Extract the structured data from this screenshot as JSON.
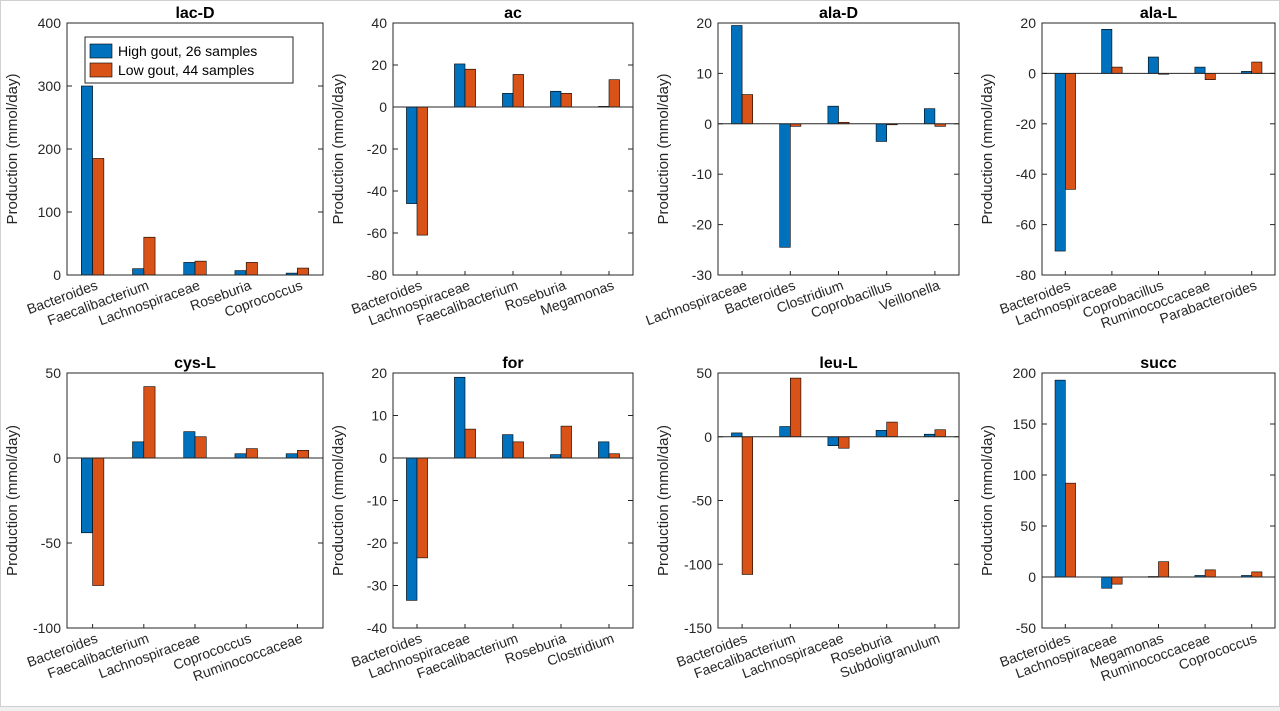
{
  "figure": {
    "legend": {
      "entries": [
        "High gout, 26 samples",
        "Low gout, 44 samples"
      ],
      "placement": "top-right"
    },
    "colors": {
      "high": "#0072BD",
      "low": "#D95319"
    }
  },
  "chart_data": [
    {
      "type": "bar",
      "title": "lac-D",
      "ylabel": "Production (mmol/day)",
      "ylim": [
        0,
        400
      ],
      "yticks": [
        0,
        100,
        200,
        300,
        400
      ],
      "categories": [
        "Bacteroides",
        "Faecalibacterium",
        "Lachnospiraceae",
        "Roseburia",
        "Coprococcus"
      ],
      "series": [
        {
          "name": "High gout, 26 samples",
          "values": [
            300,
            10,
            20,
            7,
            3
          ]
        },
        {
          "name": "Low gout, 44 samples",
          "values": [
            185,
            60,
            22,
            20,
            11
          ]
        }
      ]
    },
    {
      "type": "bar",
      "title": "ac",
      "ylabel": "Production (mmol/day)",
      "ylim": [
        -80,
        40
      ],
      "yticks": [
        -80,
        -60,
        -40,
        -20,
        0,
        20,
        40
      ],
      "categories": [
        "Bacteroides",
        "Lachnospiraceae",
        "Faecalibacterium",
        "Roseburia",
        "Megamonas"
      ],
      "series": [
        {
          "name": "High gout, 26 samples",
          "values": [
            -46,
            20.5,
            6.5,
            7.5,
            0.3
          ]
        },
        {
          "name": "Low gout, 44 samples",
          "values": [
            -61,
            18,
            15.5,
            6.5,
            13
          ]
        }
      ]
    },
    {
      "type": "bar",
      "title": "ala-D",
      "ylabel": "Production (mmol/day)",
      "ylim": [
        -30,
        20
      ],
      "yticks": [
        -30,
        -20,
        -10,
        0,
        10,
        20
      ],
      "categories": [
        "Lachnospiraceae",
        "Bacteroides",
        "Clostridium",
        "Coprobacillus",
        "Veillonella"
      ],
      "series": [
        {
          "name": "High gout, 26 samples",
          "values": [
            19.5,
            -24.5,
            3.5,
            -3.5,
            3
          ]
        },
        {
          "name": "Low gout, 44 samples",
          "values": [
            5.8,
            -0.5,
            0.3,
            -0.2,
            -0.5
          ]
        }
      ]
    },
    {
      "type": "bar",
      "title": "ala-L",
      "ylabel": "Production (mmol/day)",
      "ylim": [
        -80,
        20
      ],
      "yticks": [
        -80,
        -60,
        -40,
        -20,
        0,
        20
      ],
      "categories": [
        "Bacteroides",
        "Lachnospiraceae",
        "Coprobacillus",
        "Ruminococcaceae",
        "Parabacteroides"
      ],
      "series": [
        {
          "name": "High gout, 26 samples",
          "values": [
            -70.5,
            17.5,
            6.5,
            2.5,
            0.8
          ]
        },
        {
          "name": "Low gout, 44 samples",
          "values": [
            -46,
            2.5,
            -0.3,
            -2.5,
            4.5
          ]
        }
      ]
    },
    {
      "type": "bar",
      "title": "cys-L",
      "ylabel": "Production (mmol/day)",
      "ylim": [
        -100,
        50
      ],
      "yticks": [
        -100,
        -50,
        0,
        50
      ],
      "categories": [
        "Bacteroides",
        "Faecalibacterium",
        "Lachnospiraceae",
        "Coprococcus",
        "Ruminococcaceae"
      ],
      "series": [
        {
          "name": "High gout, 26 samples",
          "values": [
            -44,
            9.5,
            15.5,
            2.5,
            2.5
          ]
        },
        {
          "name": "Low gout, 44 samples",
          "values": [
            -75,
            42,
            12.5,
            5.5,
            4.5
          ]
        }
      ]
    },
    {
      "type": "bar",
      "title": "for",
      "ylabel": "Production (mmol/day)",
      "ylim": [
        -40,
        20
      ],
      "yticks": [
        -40,
        -30,
        -20,
        -10,
        0,
        10,
        20
      ],
      "categories": [
        "Bacteroides",
        "Lachnospiraceae",
        "Faecalibacterium",
        "Roseburia",
        "Clostridium"
      ],
      "series": [
        {
          "name": "High gout, 26 samples",
          "values": [
            -33.5,
            19,
            5.5,
            0.8,
            3.8
          ]
        },
        {
          "name": "Low gout, 44 samples",
          "values": [
            -23.5,
            6.8,
            3.8,
            7.5,
            1
          ]
        }
      ]
    },
    {
      "type": "bar",
      "title": "leu-L",
      "ylabel": "Production (mmol/day)",
      "ylim": [
        -150,
        50
      ],
      "yticks": [
        -150,
        -100,
        -50,
        0,
        50
      ],
      "categories": [
        "Bacteroides",
        "Faecalibacterium",
        "Lachnospiraceae",
        "Roseburia",
        "Subdoligranulum"
      ],
      "series": [
        {
          "name": "High gout, 26 samples",
          "values": [
            3,
            8,
            -7,
            5,
            2
          ]
        },
        {
          "name": "Low gout, 44 samples",
          "values": [
            -108,
            46,
            -9,
            11.5,
            5.5
          ]
        }
      ]
    },
    {
      "type": "bar",
      "title": "succ",
      "ylabel": "Production (mmol/day)",
      "ylim": [
        -50,
        200
      ],
      "yticks": [
        -50,
        0,
        50,
        100,
        150,
        200
      ],
      "categories": [
        "Bacteroides",
        "Lachnospiraceae",
        "Megamonas",
        "Ruminococcaceae",
        "Coprococcus"
      ],
      "series": [
        {
          "name": "High gout, 26 samples",
          "values": [
            193,
            -11,
            0.5,
            1.5,
            1.5
          ]
        },
        {
          "name": "Low gout, 44 samples",
          "values": [
            92,
            -7,
            15,
            7,
            5
          ]
        }
      ]
    }
  ]
}
